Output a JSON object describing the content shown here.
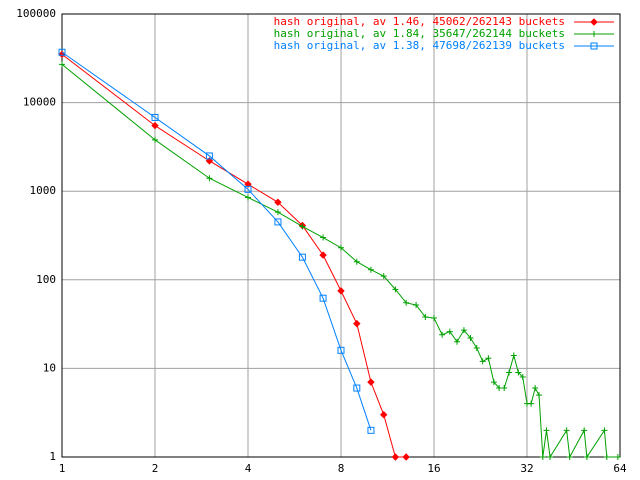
{
  "chart_data": {
    "type": "line",
    "xscale": "log",
    "yscale": "log",
    "grid": true,
    "legend": "top-right",
    "xlim": [
      1,
      64
    ],
    "ylim": [
      1,
      100000
    ],
    "xticks": [
      1,
      2,
      4,
      8,
      16,
      32,
      64
    ],
    "yticks": [
      1,
      10,
      100,
      1000,
      10000,
      100000
    ],
    "series": [
      {
        "name": "hash original, av 1.46, 45062/262143 buckets",
        "color": "#ff0000",
        "marker": "diamond",
        "x": [
          1,
          2,
          3,
          4,
          5,
          6,
          7,
          8,
          9,
          10,
          11,
          12,
          13
        ],
        "values": [
          35000,
          5500,
          2200,
          1200,
          750,
          410,
          190,
          75,
          32,
          7,
          3,
          1,
          1
        ]
      },
      {
        "name": "hash original, av 1.84, 35647/262144 buckets",
        "color": "#00a000",
        "marker": "plus",
        "x": [
          1,
          2,
          3,
          4,
          5,
          6,
          7,
          8,
          9,
          10,
          11,
          12,
          13,
          14,
          15,
          16,
          17,
          18,
          19,
          20,
          21,
          22,
          23,
          24,
          25,
          26,
          27,
          28,
          29,
          30,
          31,
          32,
          33,
          34,
          35,
          36,
          37,
          38,
          43,
          44,
          49,
          50,
          57,
          58,
          63
        ],
        "values": [
          27000,
          3800,
          1400,
          850,
          580,
          400,
          300,
          230,
          160,
          130,
          110,
          78,
          55,
          52,
          38,
          37,
          24,
          26,
          20,
          27,
          22,
          17,
          12,
          13,
          7,
          6,
          6,
          9,
          14,
          9,
          8,
          4,
          4,
          6,
          5,
          1,
          2,
          1,
          2,
          1,
          2,
          1,
          2,
          1,
          1
        ]
      },
      {
        "name": "hash original, av 1.38, 47698/262139 buckets",
        "color": "#0080ff",
        "marker": "square",
        "x": [
          1,
          2,
          3,
          4,
          5,
          6,
          7,
          8,
          9,
          10
        ],
        "values": [
          37000,
          6800,
          2500,
          1050,
          450,
          180,
          62,
          16,
          6,
          2
        ]
      }
    ]
  }
}
